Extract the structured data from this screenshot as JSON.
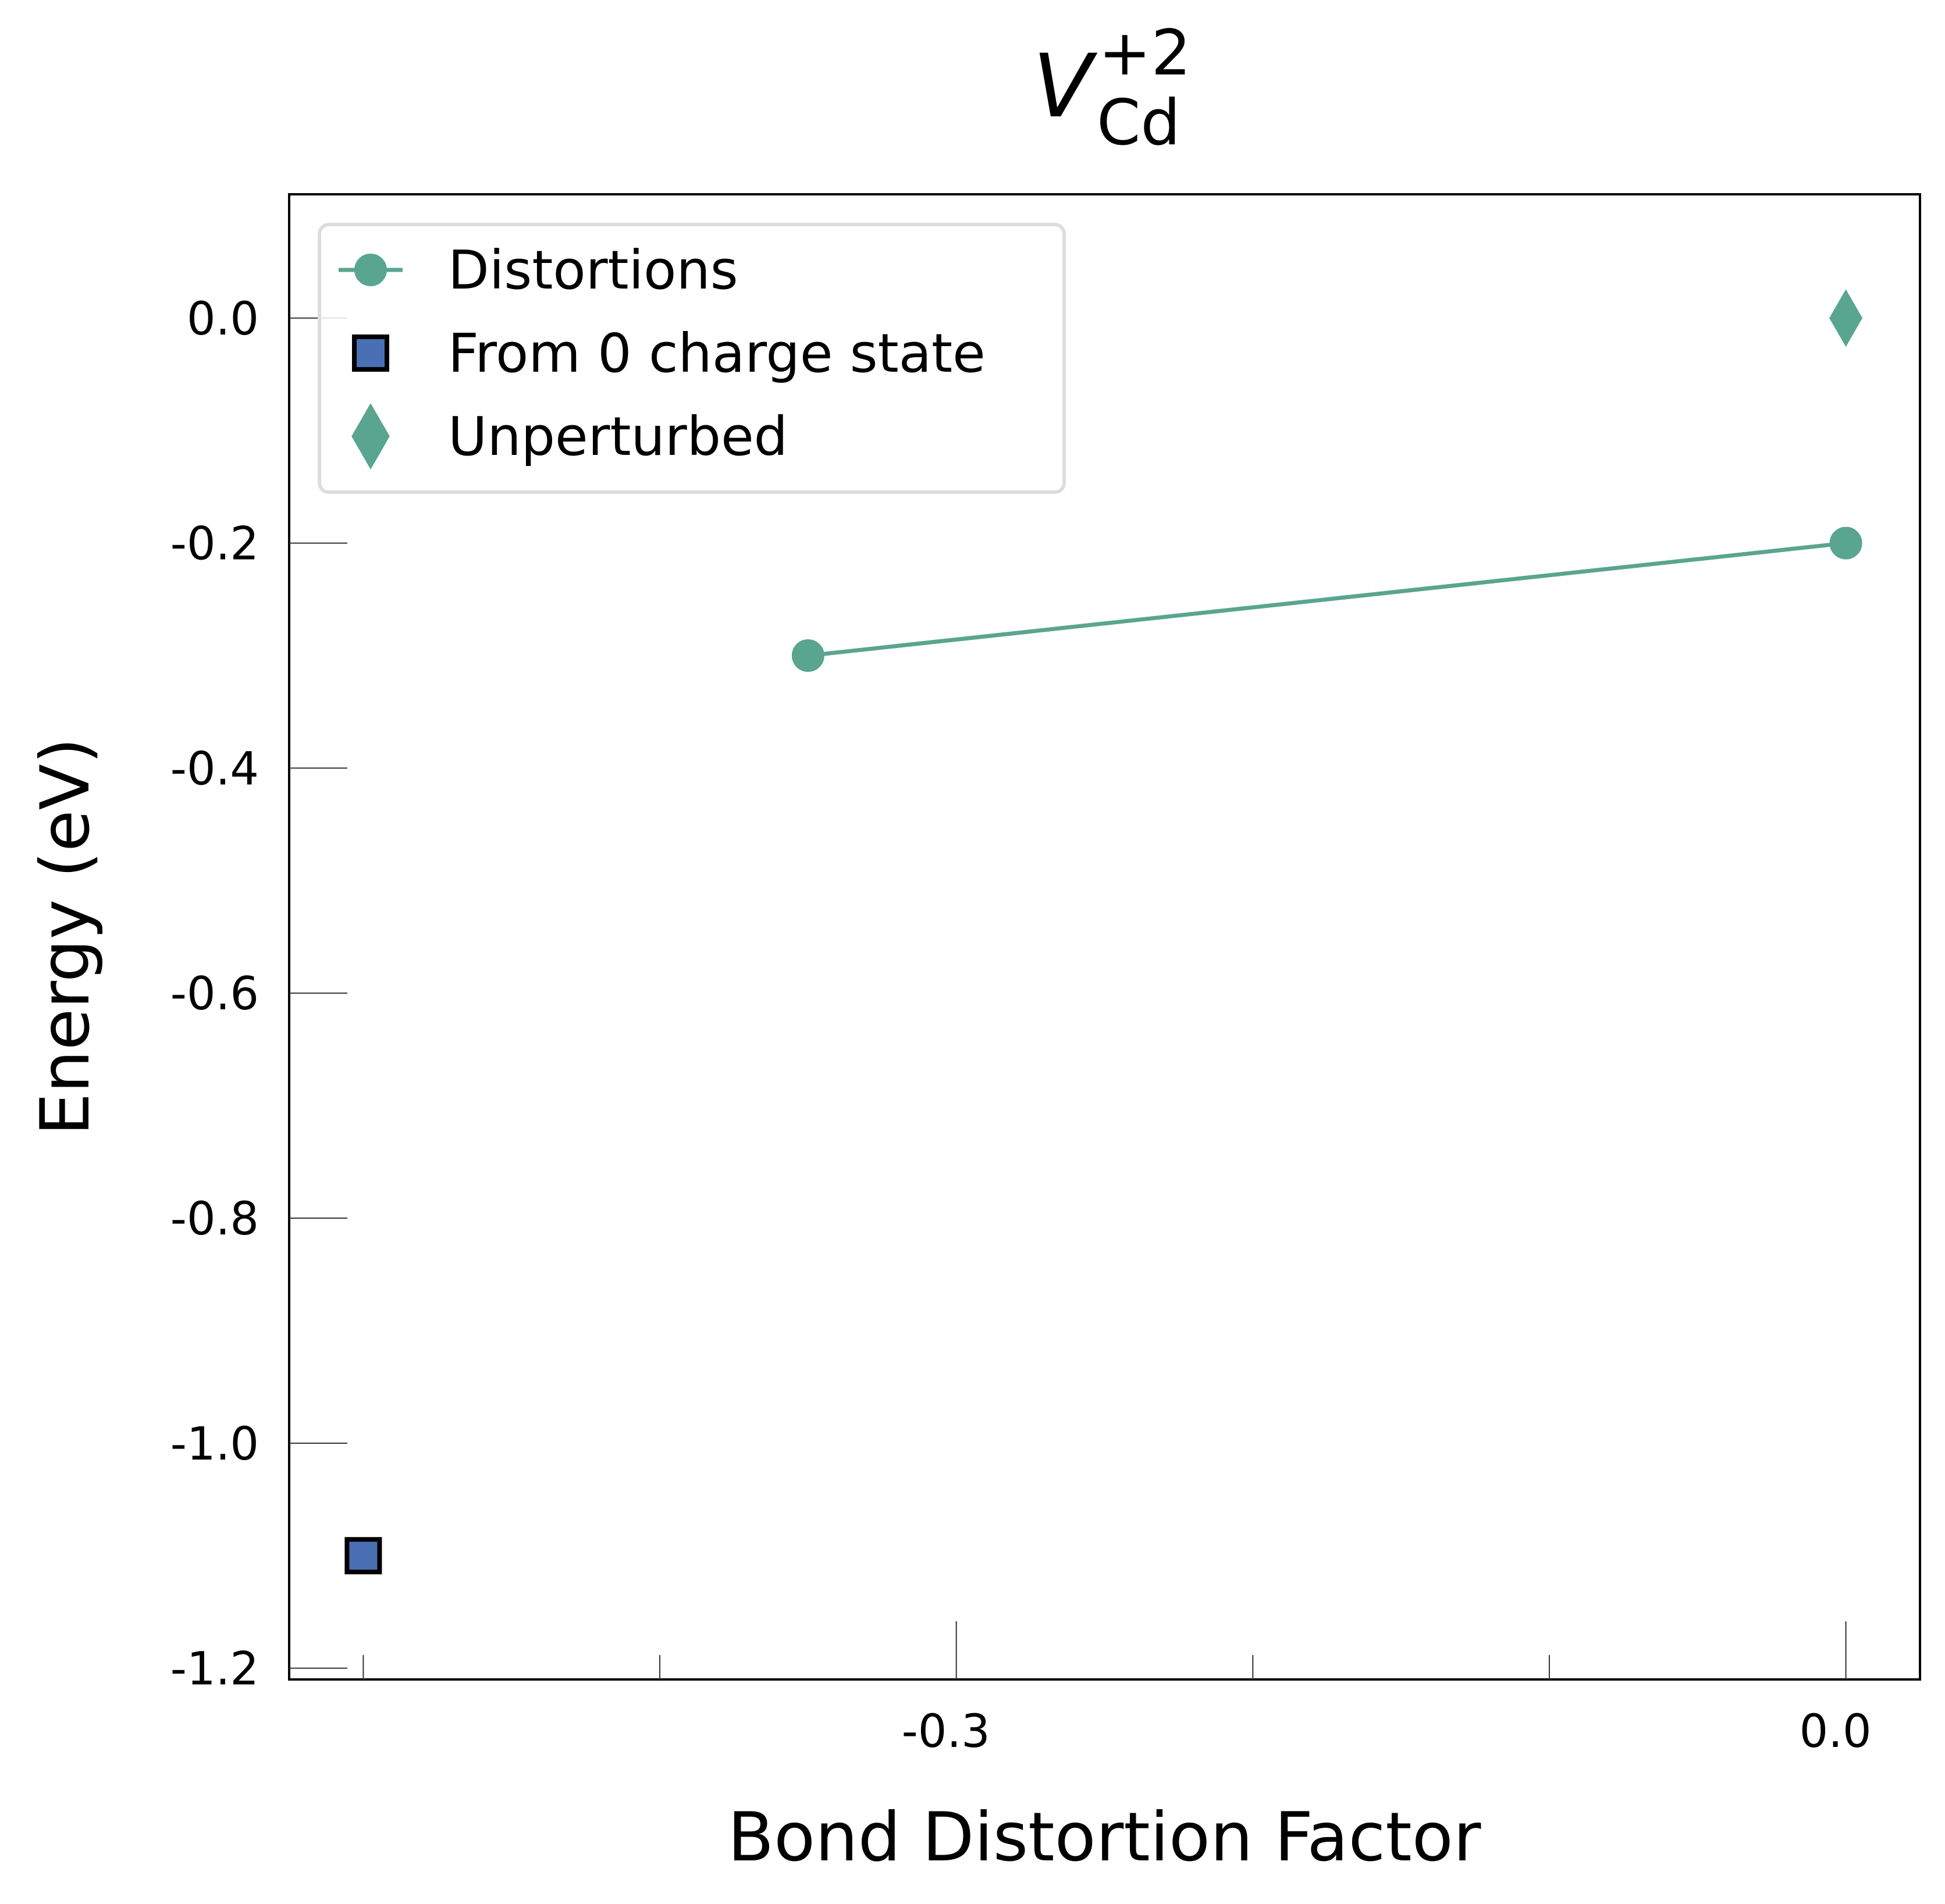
{
  "chart_data": {
    "type": "scatter",
    "title": {
      "symbol": "V",
      "subscript": "Cd",
      "superscript": "+2"
    },
    "xlabel": "Bond Distortion Factor",
    "ylabel": "Energy (eV)",
    "xlim": [
      -0.525,
      0.025
    ],
    "ylim": [
      -1.21,
      0.11
    ],
    "x_ticks": [
      {
        "value": -0.3,
        "label": "-0.3"
      },
      {
        "value": 0.0,
        "label": "0.0"
      }
    ],
    "x_minor_ticks": [
      -0.5,
      -0.4,
      -0.2,
      -0.1
    ],
    "y_ticks": [
      {
        "value": 0.0,
        "label": "0.0"
      },
      {
        "value": -0.2,
        "label": "-0.2"
      },
      {
        "value": -0.4,
        "label": "-0.4"
      },
      {
        "value": -0.6,
        "label": "-0.6"
      },
      {
        "value": -0.8,
        "label": "-0.8"
      },
      {
        "value": -1.0,
        "label": "-1.0"
      },
      {
        "value": -1.2,
        "label": "-1.2"
      }
    ],
    "grid": false,
    "legend_position": "top-left",
    "series": [
      {
        "name": "Distortions",
        "marker": "circle",
        "line": true,
        "color": "#59a590",
        "points": [
          {
            "x": -0.35,
            "y": -0.3
          },
          {
            "x": 0.0,
            "y": -0.2
          }
        ]
      },
      {
        "name": "From 0 charge state",
        "marker": "square",
        "line": false,
        "color": "#4a6fb5",
        "edge_color": "#000000",
        "points": [
          {
            "x": -0.5,
            "y": -1.1
          }
        ]
      },
      {
        "name": "Unperturbed",
        "marker": "diamond",
        "line": false,
        "color": "#59a590",
        "points": [
          {
            "x": 0.0,
            "y": 0.0
          }
        ]
      }
    ]
  }
}
